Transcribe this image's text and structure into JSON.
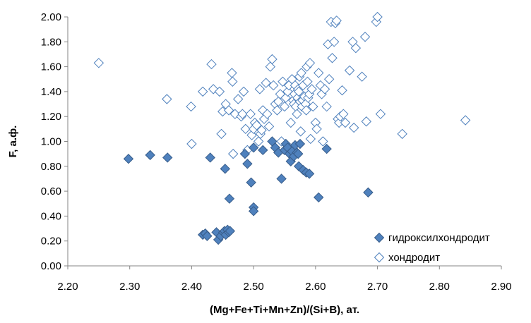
{
  "chart_data": {
    "type": "scatter",
    "title": "",
    "xlabel": "(Mg+Fe+Ti+Mn+Zn)/(Si+B), ат.",
    "ylabel": "F, а.ф.",
    "xlim": [
      2.2,
      2.9
    ],
    "ylim": [
      0.0,
      2.0
    ],
    "xticks": [
      "2.20",
      "2.30",
      "2.40",
      "2.50",
      "2.60",
      "2.70",
      "2.80",
      "2.90"
    ],
    "yticks": [
      "0.00",
      "0.20",
      "0.40",
      "0.60",
      "0.80",
      "1.00",
      "1.20",
      "1.40",
      "1.60",
      "1.80",
      "2.00"
    ],
    "grid": false,
    "legend_position": "bottom-right",
    "series": [
      {
        "name": "гидроксилхондродит",
        "marker": "filled-diamond",
        "color": "#4472C4",
        "points": [
          [
            2.298,
            0.86
          ],
          [
            2.333,
            0.89
          ],
          [
            2.361,
            0.87
          ],
          [
            2.43,
            0.87
          ],
          [
            2.418,
            0.25
          ],
          [
            2.422,
            0.26
          ],
          [
            2.425,
            0.24
          ],
          [
            2.44,
            0.27
          ],
          [
            2.443,
            0.21
          ],
          [
            2.447,
            0.24
          ],
          [
            2.451,
            0.27
          ],
          [
            2.453,
            0.28
          ],
          [
            2.455,
            0.25
          ],
          [
            2.458,
            0.29
          ],
          [
            2.46,
            0.27
          ],
          [
            2.462,
            0.28
          ],
          [
            2.461,
            0.54
          ],
          [
            2.454,
            0.78
          ],
          [
            2.486,
            0.9
          ],
          [
            2.49,
            0.82
          ],
          [
            2.496,
            0.67
          ],
          [
            2.5,
            0.47
          ],
          [
            2.5,
            0.44
          ],
          [
            2.5,
            0.95
          ],
          [
            2.515,
            0.93
          ],
          [
            2.53,
            1.0
          ],
          [
            2.535,
            0.95
          ],
          [
            2.54,
            0.91
          ],
          [
            2.545,
            0.7
          ],
          [
            2.55,
            0.93
          ],
          [
            2.552,
            0.98
          ],
          [
            2.555,
            0.95
          ],
          [
            2.558,
            0.9
          ],
          [
            2.56,
            0.84
          ],
          [
            2.562,
            0.92
          ],
          [
            2.565,
            0.88
          ],
          [
            2.567,
            0.97
          ],
          [
            2.57,
            0.91
          ],
          [
            2.572,
            0.9
          ],
          [
            2.573,
            0.8
          ],
          [
            2.575,
            0.98
          ],
          [
            2.58,
            0.77
          ],
          [
            2.585,
            0.75
          ],
          [
            2.59,
            0.74
          ],
          [
            2.605,
            0.55
          ],
          [
            2.618,
            0.94
          ],
          [
            2.685,
            0.59
          ]
        ]
      },
      {
        "name": "хондродит",
        "marker": "open-diamond",
        "color": "#4472C4",
        "points": [
          [
            2.25,
            1.63
          ],
          [
            2.36,
            1.34
          ],
          [
            2.4,
            0.98
          ],
          [
            2.399,
            1.28
          ],
          [
            2.418,
            1.4
          ],
          [
            2.432,
            1.62
          ],
          [
            2.435,
            1.42
          ],
          [
            2.445,
            1.4
          ],
          [
            2.45,
            1.24
          ],
          [
            2.448,
            1.06
          ],
          [
            2.455,
            1.3
          ],
          [
            2.46,
            1.25
          ],
          [
            2.465,
            1.55
          ],
          [
            2.466,
            1.48
          ],
          [
            2.467,
            0.9
          ],
          [
            2.47,
            1.22
          ],
          [
            2.475,
            1.34
          ],
          [
            2.48,
            1.2
          ],
          [
            2.482,
            1.22
          ],
          [
            2.484,
            1.4
          ],
          [
            2.487,
            1.1
          ],
          [
            2.49,
            0.93
          ],
          [
            2.495,
            1.22
          ],
          [
            2.497,
            1.05
          ],
          [
            2.5,
            1.1
          ],
          [
            2.502,
            1.15
          ],
          [
            2.505,
            1.13
          ],
          [
            2.508,
            1.0
          ],
          [
            2.51,
            1.42
          ],
          [
            2.511,
            1.06
          ],
          [
            2.513,
            1.09
          ],
          [
            2.515,
            1.25
          ],
          [
            2.517,
            1.18
          ],
          [
            2.52,
            1.47
          ],
          [
            2.522,
            1.22
          ],
          [
            2.525,
            1.12
          ],
          [
            2.527,
            1.6
          ],
          [
            2.53,
            1.66
          ],
          [
            2.532,
            1.45
          ],
          [
            2.535,
            1.3
          ],
          [
            2.538,
            1.25
          ],
          [
            2.54,
            1.32
          ],
          [
            2.543,
            1.38
          ],
          [
            2.545,
            1.0
          ],
          [
            2.547,
            1.48
          ],
          [
            2.55,
            1.28
          ],
          [
            2.552,
            1.35
          ],
          [
            2.555,
            1.4
          ],
          [
            2.557,
            1.45
          ],
          [
            2.56,
            1.15
          ],
          [
            2.562,
            1.5
          ],
          [
            2.564,
            1.33
          ],
          [
            2.565,
            1.3
          ],
          [
            2.566,
            1.38
          ],
          [
            2.567,
            1.45
          ],
          [
            2.568,
            1.28
          ],
          [
            2.57,
            1.22
          ],
          [
            2.571,
            1.35
          ],
          [
            2.572,
            1.42
          ],
          [
            2.573,
            1.4
          ],
          [
            2.574,
            1.52
          ],
          [
            2.575,
            1.32
          ],
          [
            2.576,
            1.08
          ],
          [
            2.577,
            1.55
          ],
          [
            2.578,
            1.28
          ],
          [
            2.579,
            1.33
          ],
          [
            2.58,
            1.45
          ],
          [
            2.582,
            1.36
          ],
          [
            2.584,
            1.3
          ],
          [
            2.585,
            1.25
          ],
          [
            2.586,
            1.6
          ],
          [
            2.587,
            1.48
          ],
          [
            2.588,
            1.35
          ],
          [
            2.59,
            1.38
          ],
          [
            2.591,
            1.63
          ],
          [
            2.592,
            1.02
          ],
          [
            2.594,
            1.42
          ],
          [
            2.596,
            1.28
          ],
          [
            2.6,
            1.15
          ],
          [
            2.602,
            1.1
          ],
          [
            2.605,
            1.55
          ],
          [
            2.608,
            1.45
          ],
          [
            2.61,
            1.38
          ],
          [
            2.612,
            1.0
          ],
          [
            2.615,
            1.42
          ],
          [
            2.618,
            1.28
          ],
          [
            2.62,
            1.78
          ],
          [
            2.622,
            1.5
          ],
          [
            2.625,
            1.96
          ],
          [
            2.627,
            1.67
          ],
          [
            2.63,
            1.8
          ],
          [
            2.632,
            1.95
          ],
          [
            2.634,
            1.97
          ],
          [
            2.636,
            1.18
          ],
          [
            2.638,
            1.15
          ],
          [
            2.64,
            1.2
          ],
          [
            2.643,
            1.41
          ],
          [
            2.645,
            1.22
          ],
          [
            2.648,
            1.15
          ],
          [
            2.655,
            1.57
          ],
          [
            2.66,
            1.8
          ],
          [
            2.662,
            1.11
          ],
          [
            2.665,
            1.75
          ],
          [
            2.675,
            1.52
          ],
          [
            2.68,
            1.84
          ],
          [
            2.682,
            1.16
          ],
          [
            2.698,
            1.96
          ],
          [
            2.7,
            2.0
          ],
          [
            2.705,
            1.22
          ],
          [
            2.74,
            1.06
          ],
          [
            2.842,
            1.17
          ]
        ]
      }
    ]
  }
}
